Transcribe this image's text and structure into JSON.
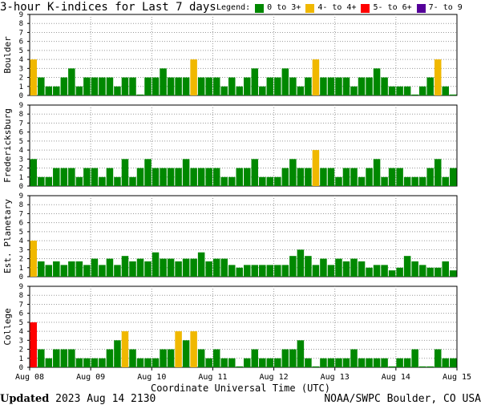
{
  "header": {
    "title": "3-hour K-indices for Last 7 days",
    "legend_label": "Legend:",
    "legend": [
      {
        "label": "0 to 3+",
        "color": "#008800"
      },
      {
        "label": "4- to 4+",
        "color": "#f0b800"
      },
      {
        "label": "5- to 6+",
        "color": "#ff0000"
      },
      {
        "label": "7- to 9",
        "color": "#550099"
      }
    ]
  },
  "footer": {
    "updated_label": "Updated",
    "updated_time": "2023 Aug 14 2130",
    "source": "NOAA/SWPC Boulder, CO USA"
  },
  "chart_data": {
    "type": "bar",
    "title": "3-hour K-indices for Last 7 days",
    "xlabel": "Coordinate Universal Time (UTC)",
    "x_ticks": [
      "Aug 08",
      "Aug 09",
      "Aug 10",
      "Aug 11",
      "Aug 12",
      "Aug 13",
      "Aug 14",
      "Aug 15"
    ],
    "ylim": [
      0,
      9
    ],
    "y_ticks": [
      "0",
      "1",
      "2",
      "3",
      "4",
      "5",
      "6",
      "7",
      "8",
      "9"
    ],
    "color_thresholds": [
      {
        "max": 3.99,
        "color": "#008800"
      },
      {
        "max": 4.99,
        "color": "#f0b800"
      },
      {
        "max": 6.99,
        "color": "#ff0000"
      },
      {
        "max": 9,
        "color": "#550099"
      }
    ],
    "panels": [
      {
        "name": "Boulder",
        "values": [
          4,
          2,
          1,
          1,
          2,
          3,
          1,
          2,
          2,
          2,
          2,
          1,
          2,
          2,
          0.1,
          2,
          2,
          3,
          2,
          2,
          2,
          4,
          2,
          2,
          2,
          1,
          2,
          1,
          2,
          3,
          1,
          2,
          2,
          3,
          2,
          1,
          2,
          4,
          2,
          2,
          2,
          2,
          1,
          2,
          2,
          3,
          2,
          1,
          1,
          1,
          0.1,
          1,
          2,
          4,
          1,
          0.1
        ]
      },
      {
        "name": "Fredericksburg",
        "values": [
          3,
          1,
          1,
          2,
          2,
          2,
          1,
          2,
          2,
          1,
          2,
          1,
          3,
          1,
          2,
          3,
          2,
          2,
          2,
          2,
          3,
          2,
          2,
          2,
          2,
          1,
          1,
          2,
          2,
          3,
          1,
          1,
          1,
          2,
          3,
          2,
          2,
          4,
          2,
          2,
          1,
          2,
          2,
          1,
          2,
          3,
          1,
          2,
          2,
          1,
          1,
          1,
          2,
          3,
          1,
          2,
          0.1
        ]
      },
      {
        "name": "Est. Planetary",
        "values": [
          4,
          1.7,
          1.3,
          1.7,
          1.3,
          1.7,
          1.7,
          1.3,
          2,
          1.3,
          2,
          1.3,
          2.3,
          1.7,
          2,
          1.7,
          2.7,
          2,
          2,
          1.7,
          2,
          2,
          2.7,
          1.7,
          2,
          2,
          1.3,
          1,
          1.3,
          1.3,
          1.3,
          1.3,
          1.3,
          1.3,
          2.3,
          3,
          2.3,
          1.3,
          2,
          1.3,
          2,
          1.7,
          2,
          1.7,
          1,
          1.3,
          1.3,
          0.7,
          1,
          2.3,
          1.7,
          1.3,
          1,
          1,
          1.7,
          0.7,
          1.7
        ]
      },
      {
        "name": "College",
        "values": [
          5,
          2,
          1,
          2,
          2,
          2,
          1,
          1,
          1,
          1,
          2,
          3,
          4,
          2,
          1,
          1,
          1,
          2,
          2,
          4,
          3,
          4,
          2,
          1,
          2,
          1,
          1,
          0.1,
          1,
          2,
          1,
          1,
          1,
          2,
          2,
          3,
          1,
          0.1,
          1,
          1,
          1,
          1,
          2,
          1,
          1,
          1,
          1,
          0.1,
          1,
          1,
          2,
          0.1,
          0.1,
          2,
          1,
          1,
          0.1
        ]
      }
    ]
  }
}
